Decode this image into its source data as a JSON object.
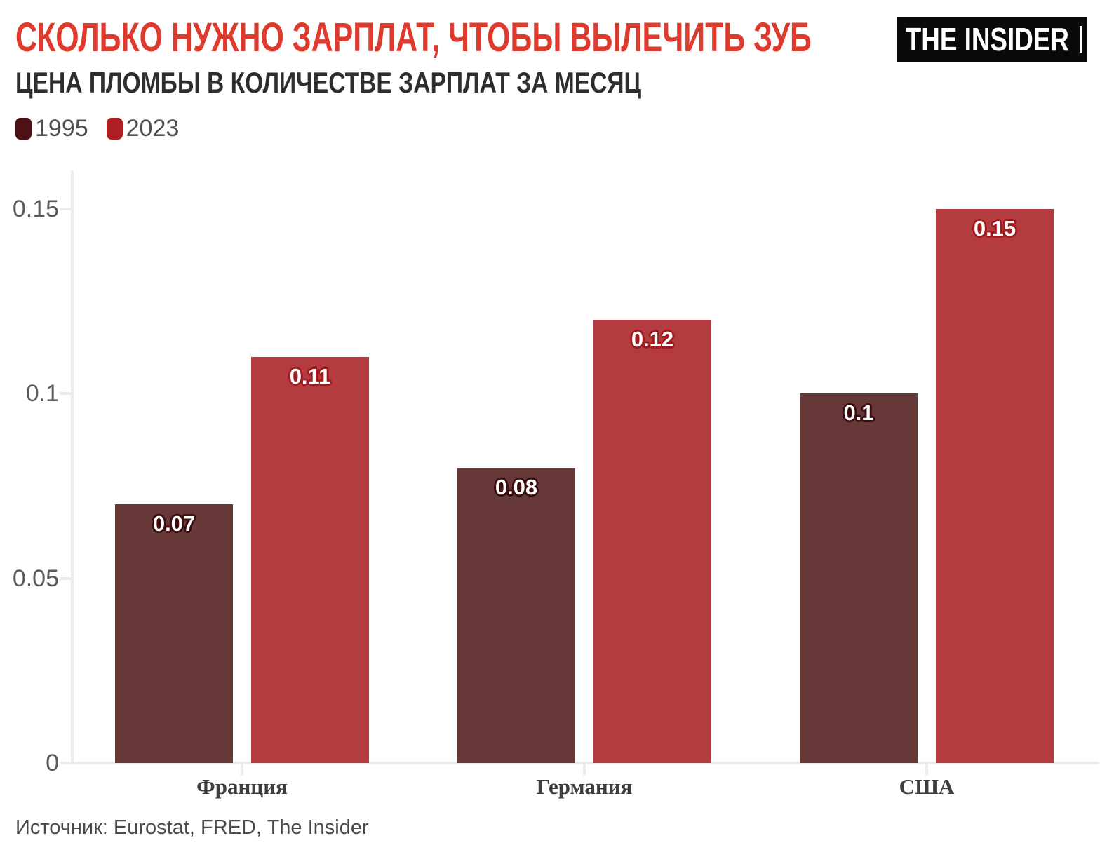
{
  "header": {
    "title": "СКОЛЬКО НУЖНО ЗАРПЛАТ, ЧТОБЫ ВЫЛЕЧИТЬ ЗУБ",
    "subtitle": "ЦЕНА ПЛОМБЫ В КОЛИЧЕСТВЕ ЗАРПЛАТ ЗА МЕСЯЦ",
    "logo_text": "THE INSIDER",
    "title_color": "#de3b2e",
    "logo_bg": "#0a0a0a"
  },
  "legend": {
    "items": [
      {
        "label": "1995",
        "color": "#4d1115"
      },
      {
        "label": "2023",
        "color": "#ad1d22"
      }
    ]
  },
  "source": "Источник: Eurostat, FRED, The Insider",
  "chart_data": {
    "type": "bar",
    "title": "СКОЛЬКО НУЖНО ЗАРПЛАТ, ЧТОБЫ ВЫЛЕЧИТЬ ЗУБ",
    "subtitle": "ЦЕНА ПЛОМБЫ В КОЛИЧЕСТВЕ ЗАРПЛАТ ЗА МЕСЯЦ",
    "categories": [
      "Франция",
      "Германия",
      "США"
    ],
    "series": [
      {
        "name": "1995",
        "color": "#663838",
        "label_outline": "#3c0c0f",
        "values": [
          0.07,
          0.08,
          0.1
        ],
        "value_labels": [
          "0.07",
          "0.08",
          "0.1"
        ]
      },
      {
        "name": "2023",
        "color": "#b43c40",
        "label_outline": "#9e1b20",
        "values": [
          0.11,
          0.12,
          0.15
        ],
        "value_labels": [
          "0.11",
          "0.12",
          "0.15"
        ]
      }
    ],
    "xlabel": "",
    "ylabel": "",
    "yticks": [
      0,
      0.05,
      0.1,
      0.15
    ],
    "ytick_labels": [
      "0",
      "0.05",
      "0.1",
      "0.15"
    ],
    "ylim": [
      0,
      0.16
    ],
    "grid": false,
    "legend_position": "top-left",
    "axis_color": "#ececec",
    "ytick_label_color": "#5a5a5a",
    "category_label_color": "#3e3e3e"
  }
}
